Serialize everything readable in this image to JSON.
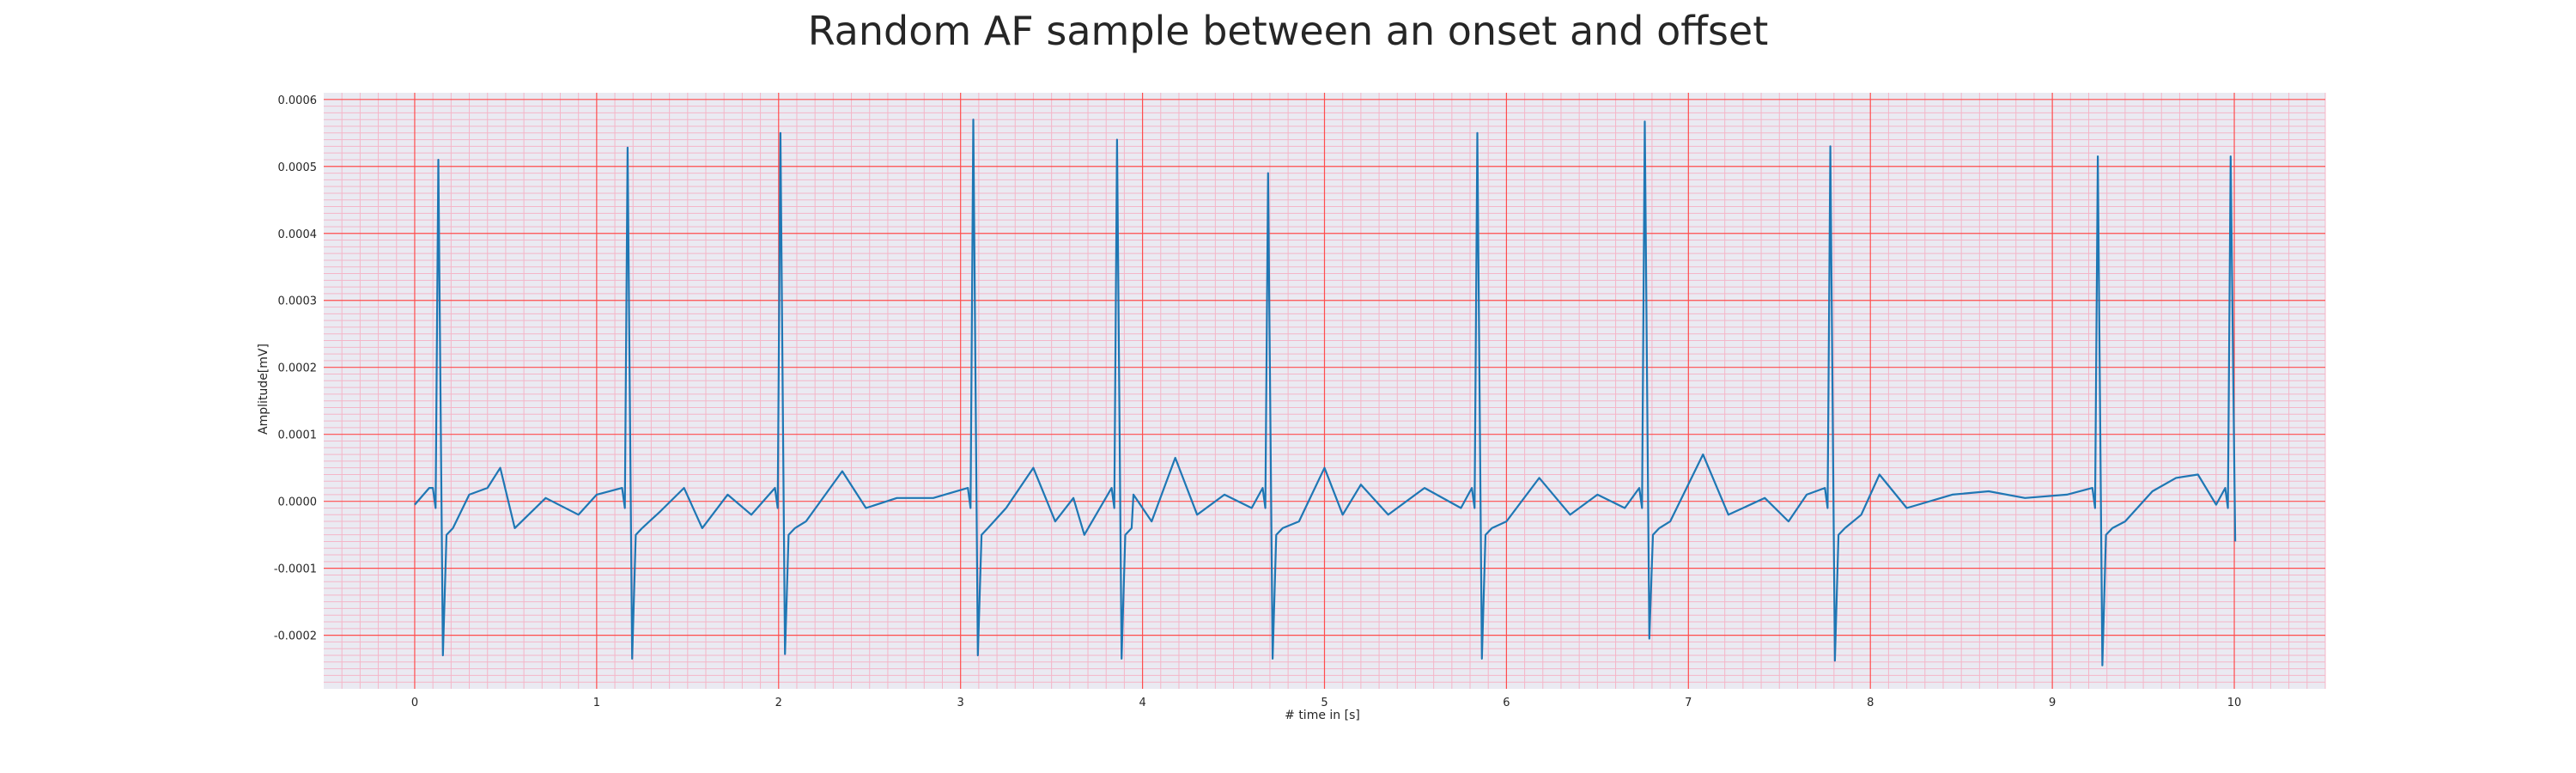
{
  "chart_data": {
    "type": "line",
    "title": "Random AF sample between an onset and offset",
    "xlabel": "# time in [s]",
    "ylabel": "Amplitude[mV]",
    "xlim": [
      -0.5,
      10.5
    ],
    "ylim": [
      -0.00028,
      0.00061
    ],
    "xticks": [
      0,
      1,
      2,
      3,
      4,
      5,
      6,
      7,
      8,
      9,
      10
    ],
    "xtick_labels": [
      "0",
      "1",
      "2",
      "3",
      "4",
      "5",
      "6",
      "7",
      "8",
      "9",
      "10"
    ],
    "yticks": [
      -0.0002,
      -0.0001,
      0.0,
      0.0001,
      0.0002,
      0.0003,
      0.0004,
      0.0005,
      0.0006
    ],
    "ytick_labels": [
      "-0.0002",
      "-0.0001",
      "0.0000",
      "0.0001",
      "0.0002",
      "0.0003",
      "0.0004",
      "0.0005",
      "0.0006"
    ],
    "grid": true,
    "grid_major_color": "#ff4d4d",
    "grid_minor_color": "#f4b6c8",
    "background_color": "#eaeaf2",
    "line_color": "#1f77b4",
    "series": [
      {
        "beats": [
          {
            "t": 0.13,
            "peak": 0.00051,
            "trough": -0.00023
          },
          {
            "t": 1.17,
            "peak": 0.000528,
            "trough": -0.000235
          },
          {
            "t": 2.01,
            "peak": 0.00055,
            "trough": -0.000228
          },
          {
            "t": 3.07,
            "peak": 0.00057,
            "trough": -0.00023
          },
          {
            "t": 3.86,
            "peak": 0.00054,
            "trough": -0.000235
          },
          {
            "t": 4.69,
            "peak": 0.00049,
            "trough": -0.000235
          },
          {
            "t": 5.84,
            "peak": 0.00055,
            "trough": -0.000235
          },
          {
            "t": 6.76,
            "peak": 0.000567,
            "trough": -0.000205
          },
          {
            "t": 7.78,
            "peak": 0.00053,
            "trough": -0.000238
          },
          {
            "t": 9.25,
            "peak": 0.000515,
            "trough": -0.000245
          },
          {
            "t": 9.98,
            "peak": 0.000515,
            "trough": -6e-05
          }
        ],
        "baseline_points": [
          [
            0.0,
            -5e-06
          ],
          [
            0.08,
            2e-05
          ],
          [
            0.3,
            1e-05
          ],
          [
            0.4,
            2e-05
          ],
          [
            0.47,
            5e-05
          ],
          [
            0.55,
            -4e-05
          ],
          [
            0.72,
            5e-06
          ],
          [
            0.9,
            -2e-05
          ],
          [
            1.0,
            1e-05
          ],
          [
            1.35,
            -1.5e-05
          ],
          [
            1.48,
            2e-05
          ],
          [
            1.58,
            -4e-05
          ],
          [
            1.72,
            1e-05
          ],
          [
            1.85,
            -2e-05
          ],
          [
            2.15,
            -3e-05
          ],
          [
            2.35,
            4.5e-05
          ],
          [
            2.48,
            -1e-05
          ],
          [
            2.65,
            5e-06
          ],
          [
            2.85,
            5e-06
          ],
          [
            3.25,
            -1e-05
          ],
          [
            3.4,
            5e-05
          ],
          [
            3.52,
            -3e-05
          ],
          [
            3.62,
            5e-06
          ],
          [
            3.68,
            -5e-05
          ],
          [
            3.95,
            1e-05
          ],
          [
            4.05,
            -3e-05
          ],
          [
            4.18,
            6.5e-05
          ],
          [
            4.3,
            -2e-05
          ],
          [
            4.45,
            1e-05
          ],
          [
            4.6,
            -1e-05
          ],
          [
            4.86,
            -3e-05
          ],
          [
            5.0,
            5e-05
          ],
          [
            5.1,
            -2e-05
          ],
          [
            5.2,
            2.5e-05
          ],
          [
            5.35,
            -2e-05
          ],
          [
            5.55,
            2e-05
          ],
          [
            5.75,
            -1e-05
          ],
          [
            6.0,
            -3e-05
          ],
          [
            6.18,
            3.5e-05
          ],
          [
            6.35,
            -2e-05
          ],
          [
            6.5,
            1e-05
          ],
          [
            6.65,
            -1e-05
          ],
          [
            6.9,
            -3e-05
          ],
          [
            7.08,
            7e-05
          ],
          [
            7.22,
            -2e-05
          ],
          [
            7.42,
            5e-06
          ],
          [
            7.55,
            -3e-05
          ],
          [
            7.65,
            1e-05
          ],
          [
            7.95,
            -2e-05
          ],
          [
            8.05,
            4e-05
          ],
          [
            8.2,
            -1e-05
          ],
          [
            8.45,
            1e-05
          ],
          [
            8.65,
            1.5e-05
          ],
          [
            8.85,
            5e-06
          ],
          [
            9.08,
            1e-05
          ],
          [
            9.4,
            -3e-05
          ],
          [
            9.55,
            1.5e-05
          ],
          [
            9.68,
            3.5e-05
          ],
          [
            9.8,
            4e-05
          ],
          [
            9.9,
            -5e-06
          ]
        ]
      }
    ]
  }
}
